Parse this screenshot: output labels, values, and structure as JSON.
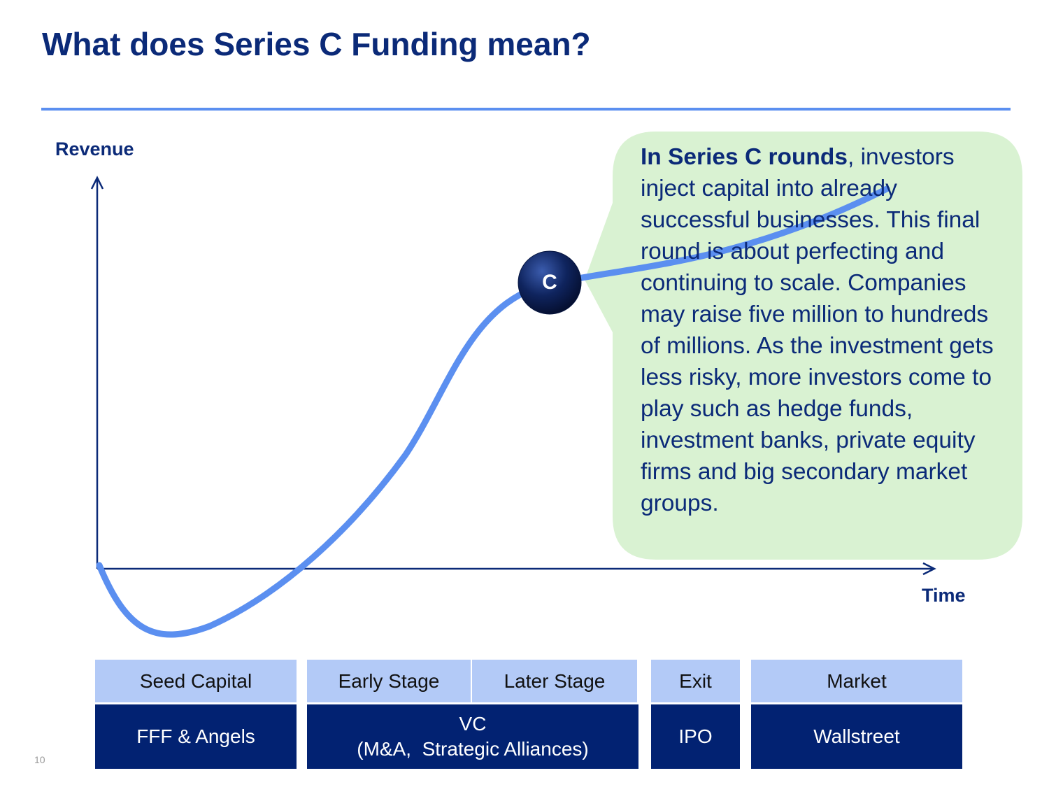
{
  "title": "What does Series C Funding mean?",
  "axes": {
    "y_label": "Revenue",
    "x_label": "Time"
  },
  "marker": {
    "label": "C"
  },
  "callout": {
    "bold_text": "In Series C rounds",
    "body_text": ", investors inject capital into already successful businesses. This final round is about perfecting and continuing to scale. Companies may raise five million to hundreds of millions. As the investment gets less risky, more investors come to play such as hedge funds, investment banks, private equity firms and big secondary market groups."
  },
  "stages": {
    "top": [
      "Seed Capital",
      "Early Stage",
      "Later Stage",
      "Exit",
      "Market"
    ],
    "bottom": {
      "fff": "FFF & Angels",
      "vc_line1": "VC",
      "vc_line2": "(M&A,  Strategic Alliances)",
      "ipo": "IPO",
      "wallstreet": "Wallstreet"
    }
  },
  "page_number": "10",
  "colors": {
    "title": "#0b2a78",
    "rule": "#5b8ff0",
    "curve": "#5b8ff0",
    "callout_bg": "#d9f2d2",
    "stage_light": "#b3caf7",
    "stage_dark": "#022272",
    "marker": "#0d1f4f"
  },
  "icons": {
    "axis_arrows": "arrow-icon"
  }
}
